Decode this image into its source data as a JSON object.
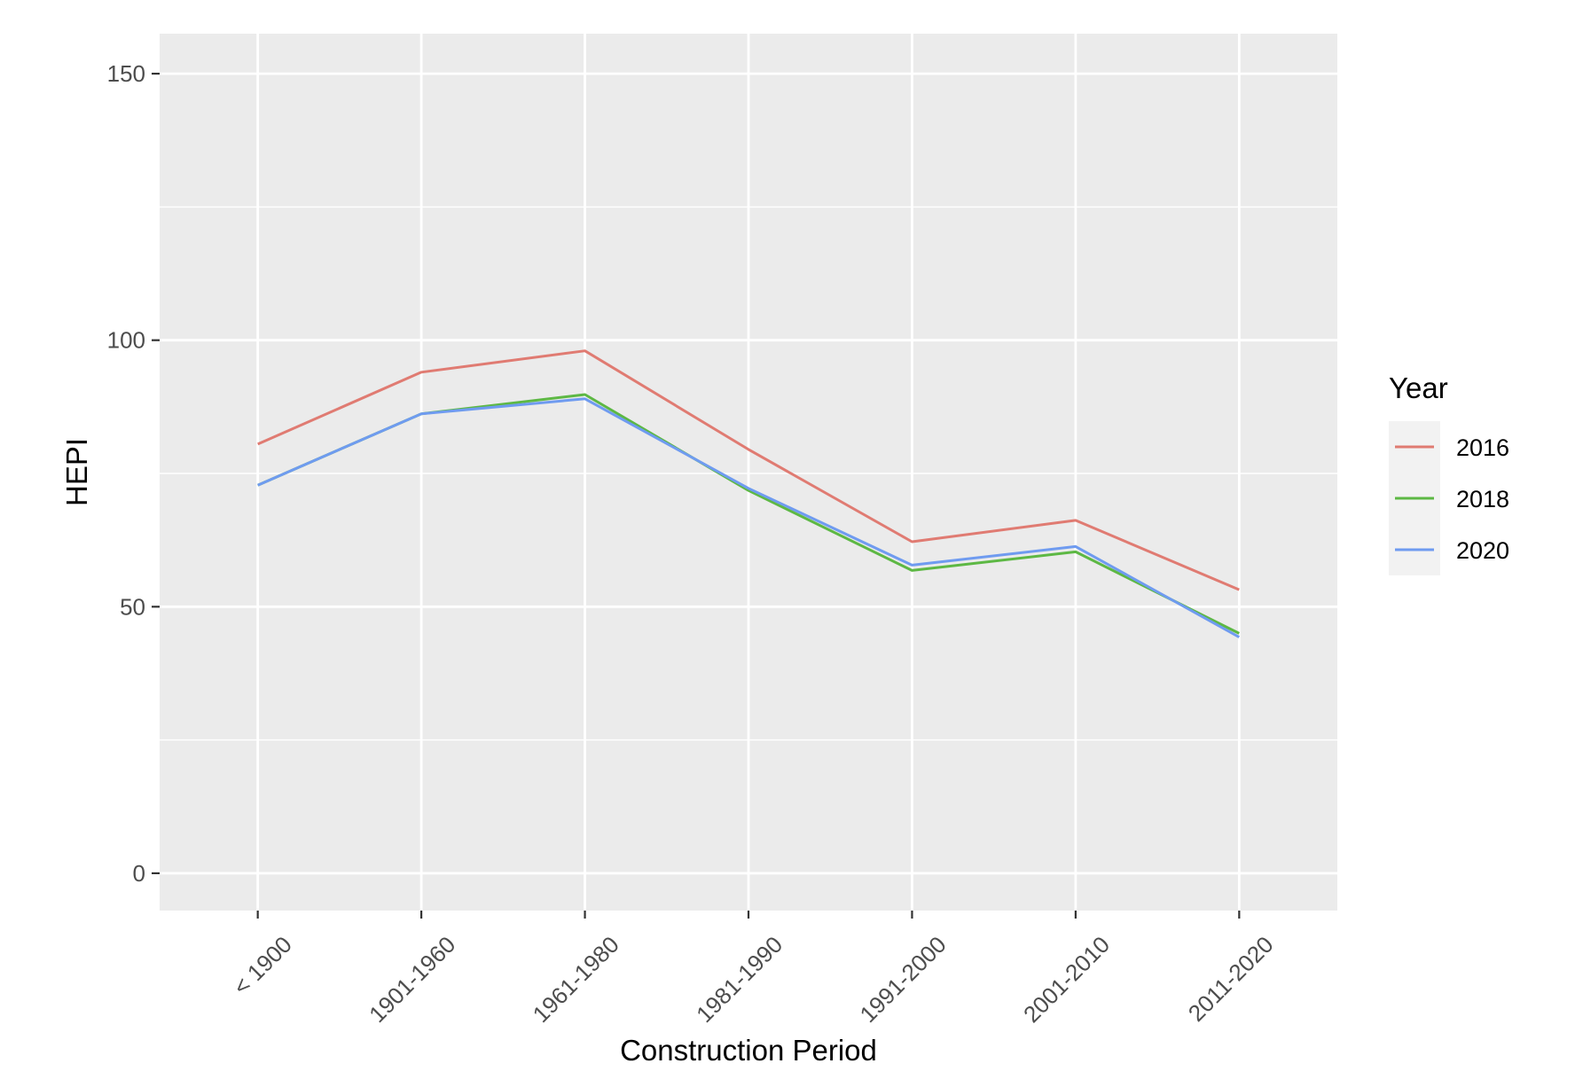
{
  "chart_data": {
    "type": "line",
    "title": "",
    "xlabel": "Construction Period",
    "ylabel": "HEPI",
    "categories": [
      "< 1900",
      "1901-1960",
      "1961-1980",
      "1981-1990",
      "1991-2000",
      "2001-2010",
      "2011-2020"
    ],
    "y_ticks": [
      0,
      50,
      100,
      150
    ],
    "y_tick_labels": [
      "0",
      "50",
      "100",
      "150"
    ],
    "ylim": [
      -7,
      157.5
    ],
    "grid": true,
    "background_color": "#ebebeb",
    "grid_color": "#ffffff",
    "legend": {
      "title": "Year",
      "position": "right"
    },
    "series": [
      {
        "name": "2016",
        "color": "#e07b72",
        "values": [
          80.5,
          94,
          98,
          79.5,
          62.2,
          66.2,
          53.2
        ]
      },
      {
        "name": "2018",
        "color": "#5db844",
        "values": [
          72.8,
          86.2,
          89.8,
          71.8,
          56.8,
          60.3,
          45
        ]
      },
      {
        "name": "2020",
        "color": "#6f9bf0",
        "values": [
          72.8,
          86.2,
          89,
          72.2,
          57.8,
          61.3,
          44.3
        ]
      }
    ]
  }
}
